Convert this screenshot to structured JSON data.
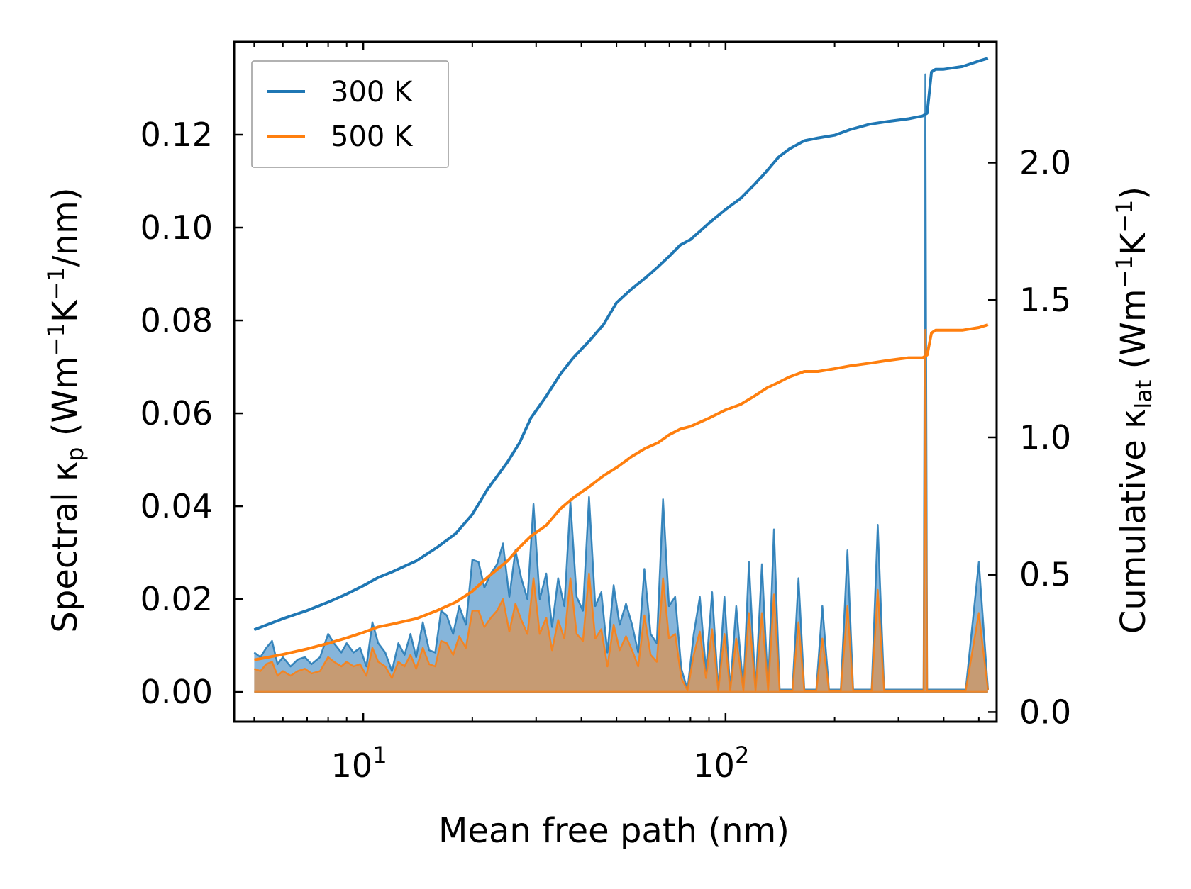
{
  "chart_data": {
    "type": "line",
    "x_scale": "log",
    "xlabel": "Mean free path (nm)",
    "ylabel_left": "Spectral κₚ (Wm⁻¹K⁻¹/nm)",
    "ylabel_right": "Cumulative κₗₐₜ (Wm⁻¹K⁻¹)",
    "ylabel_left_parts": {
      "pre": "Spectral κ",
      "sub": "p",
      "post": " (Wm",
      "sup1": "−1",
      "mid": "K",
      "sup2": "−1",
      "tail": "/nm)"
    },
    "ylabel_right_parts": {
      "pre": "Cumulative κ",
      "sub": "lat",
      "post": " (Wm",
      "sup1": "−1",
      "mid": "K",
      "sup2": "−1",
      "tail": ")"
    },
    "xlim": [
      4.4,
      560
    ],
    "ylim_left": [
      -0.0064,
      0.14
    ],
    "ylim_right": [
      -0.035,
      2.44
    ],
    "x_major_ticks": [
      10,
      100
    ],
    "x_tick_labels": [
      {
        "base": "10",
        "exp": "1"
      },
      {
        "base": "10",
        "exp": "2"
      }
    ],
    "y_left_ticks": [
      0.0,
      0.02,
      0.04,
      0.06,
      0.08,
      0.1,
      0.12
    ],
    "y_left_tick_labels": [
      "0.00",
      "0.02",
      "0.04",
      "0.06",
      "0.08",
      "0.10",
      "0.12"
    ],
    "y_right_ticks": [
      0.0,
      0.5,
      1.0,
      1.5,
      2.0
    ],
    "y_right_tick_labels": [
      "0.0",
      "0.5",
      "1.0",
      "1.5",
      "2.0"
    ],
    "legend": {
      "position": "top-left",
      "entries": [
        "300 K",
        "500 K"
      ]
    },
    "colors": {
      "300 K": "#1f77b4",
      "500 K": "#ff7f0e",
      "fill_300": "#7fb1d8",
      "fill_500": "#c99a6e"
    },
    "series": [
      {
        "name": "300 K",
        "axis": "right",
        "kind": "cumulative",
        "x": [
          5,
          6,
          7,
          8,
          9,
          10,
          11,
          12,
          14,
          16,
          18,
          20,
          22,
          25,
          27,
          29,
          32,
          35,
          38,
          42,
          46,
          50,
          55,
          60,
          65,
          70,
          75,
          80,
          90,
          100,
          110,
          120,
          130,
          140,
          150,
          165,
          180,
          200,
          220,
          250,
          280,
          320,
          350,
          360,
          370,
          380,
          400,
          450,
          500,
          530
        ],
        "y": [
          0.3,
          0.34,
          0.37,
          0.4,
          0.43,
          0.46,
          0.49,
          0.51,
          0.55,
          0.6,
          0.65,
          0.72,
          0.81,
          0.91,
          0.98,
          1.07,
          1.15,
          1.23,
          1.29,
          1.35,
          1.41,
          1.49,
          1.54,
          1.58,
          1.62,
          1.66,
          1.7,
          1.72,
          1.78,
          1.83,
          1.87,
          1.92,
          1.97,
          2.02,
          2.05,
          2.08,
          2.09,
          2.1,
          2.12,
          2.14,
          2.15,
          2.16,
          2.17,
          2.18,
          2.33,
          2.34,
          2.34,
          2.35,
          2.37,
          2.38
        ]
      },
      {
        "name": "500 K",
        "axis": "right",
        "kind": "cumulative",
        "x": [
          5,
          6,
          7,
          8,
          9,
          10,
          11,
          12,
          14,
          16,
          18,
          20,
          22,
          25,
          27,
          29,
          32,
          35,
          38,
          42,
          46,
          50,
          55,
          60,
          65,
          70,
          75,
          80,
          90,
          100,
          110,
          120,
          130,
          140,
          150,
          165,
          180,
          200,
          220,
          250,
          280,
          320,
          350,
          360,
          370,
          380,
          400,
          450,
          500,
          530
        ],
        "y": [
          0.19,
          0.21,
          0.23,
          0.25,
          0.27,
          0.29,
          0.31,
          0.32,
          0.34,
          0.37,
          0.4,
          0.44,
          0.49,
          0.55,
          0.6,
          0.64,
          0.68,
          0.74,
          0.78,
          0.82,
          0.86,
          0.89,
          0.93,
          0.96,
          0.98,
          1.01,
          1.03,
          1.04,
          1.07,
          1.1,
          1.12,
          1.15,
          1.18,
          1.2,
          1.22,
          1.24,
          1.24,
          1.25,
          1.26,
          1.27,
          1.28,
          1.29,
          1.29,
          1.3,
          1.38,
          1.39,
          1.39,
          1.39,
          1.4,
          1.41
        ]
      },
      {
        "name": "300 K",
        "axis": "left",
        "kind": "spectral",
        "x": [
          5.0,
          5.2,
          5.4,
          5.6,
          5.8,
          6.0,
          6.3,
          6.6,
          6.9,
          7.2,
          7.6,
          8.0,
          8.3,
          8.7,
          9.0,
          9.4,
          9.8,
          10.2,
          10.6,
          11.0,
          11.5,
          12.0,
          12.5,
          13.0,
          13.5,
          14.0,
          14.6,
          15.2,
          15.8,
          16.4,
          17.0,
          17.7,
          18.4,
          19.2,
          20.0,
          20.8,
          21.6,
          22.5,
          23.4,
          24.3,
          25.3,
          26.3,
          27.3,
          28.4,
          29.5,
          30.7,
          32.0,
          33.2,
          34.5,
          35.9,
          37.3,
          38.8,
          40.4,
          42.0,
          43.7,
          45.4,
          47.2,
          49.1,
          51.0,
          53.1,
          55.2,
          57.4,
          59.7,
          62.1,
          64.6,
          67.2,
          69.8,
          72.6,
          75.5,
          78.5,
          81.7,
          84.9,
          88.3,
          91.8,
          95.5,
          99.3,
          103,
          107,
          112,
          116,
          121,
          126,
          131,
          136,
          141,
          147,
          153,
          159,
          165,
          172,
          178,
          185,
          193,
          200,
          208,
          217,
          225,
          234,
          244,
          253,
          263,
          274,
          285,
          296,
          308,
          320,
          333,
          346,
          352,
          356,
          360,
          370,
          390,
          420,
          460,
          500,
          530
        ],
        "y": [
          0.0085,
          0.0075,
          0.0095,
          0.011,
          0.006,
          0.0075,
          0.0055,
          0.007,
          0.0075,
          0.006,
          0.0075,
          0.0125,
          0.0105,
          0.0085,
          0.0105,
          0.0085,
          0.0095,
          0.0055,
          0.015,
          0.0105,
          0.0085,
          0.0045,
          0.0105,
          0.008,
          0.0125,
          0.0075,
          0.015,
          0.009,
          0.0085,
          0.0175,
          0.0165,
          0.0125,
          0.0185,
          0.0145,
          0.0285,
          0.028,
          0.0225,
          0.0255,
          0.0275,
          0.032,
          0.0205,
          0.0305,
          0.0245,
          0.02,
          0.0405,
          0.02,
          0.0255,
          0.014,
          0.0245,
          0.0185,
          0.041,
          0.0205,
          0.0175,
          0.042,
          0.0185,
          0.0215,
          0.0085,
          0.023,
          0.0145,
          0.019,
          0.0145,
          0.0085,
          0.0265,
          0.0125,
          0.0105,
          0.0415,
          0.0185,
          0.0205,
          0.005,
          0.0005,
          0.0125,
          0.0205,
          0.0045,
          0.0215,
          0.0005,
          0.0205,
          0.0005,
          0.0185,
          0.0005,
          0.028,
          0.0005,
          0.0275,
          0.0005,
          0.035,
          0.0005,
          0.0005,
          0.0005,
          0.0245,
          0.0005,
          0.0005,
          0.0005,
          0.0185,
          0.0005,
          0.0005,
          0.0005,
          0.0305,
          0.0005,
          0.0005,
          0.0005,
          0.0005,
          0.036,
          0.0005,
          0.0005,
          0.0005,
          0.0005,
          0.0005,
          0.0005,
          0.0005,
          0.0005,
          0.133,
          0.0005,
          0.0005,
          0.0005,
          0.0005,
          0.0005,
          0.028,
          0.0005
        ]
      },
      {
        "name": "500 K",
        "axis": "left",
        "kind": "spectral",
        "x": [
          5.0,
          5.2,
          5.4,
          5.6,
          5.8,
          6.0,
          6.3,
          6.6,
          6.9,
          7.2,
          7.6,
          8.0,
          8.3,
          8.7,
          9.0,
          9.4,
          9.8,
          10.2,
          10.6,
          11.0,
          11.5,
          12.0,
          12.5,
          13.0,
          13.5,
          14.0,
          14.6,
          15.2,
          15.8,
          16.4,
          17.0,
          17.7,
          18.4,
          19.2,
          20.0,
          20.8,
          21.6,
          22.5,
          23.4,
          24.3,
          25.3,
          26.3,
          27.3,
          28.4,
          29.5,
          30.7,
          32.0,
          33.2,
          34.5,
          35.9,
          37.3,
          38.8,
          40.4,
          42.0,
          43.7,
          45.4,
          47.2,
          49.1,
          51.0,
          53.1,
          55.2,
          57.4,
          59.7,
          62.1,
          64.6,
          67.2,
          69.8,
          72.6,
          75.5,
          78.5,
          81.7,
          84.9,
          88.3,
          91.8,
          95.5,
          99.3,
          103,
          107,
          112,
          116,
          121,
          126,
          131,
          136,
          141,
          147,
          153,
          159,
          165,
          172,
          178,
          185,
          193,
          200,
          208,
          217,
          225,
          234,
          244,
          253,
          263,
          274,
          285,
          296,
          308,
          320,
          333,
          346,
          352,
          356,
          360,
          370,
          390,
          420,
          460,
          500,
          530
        ],
        "y": [
          0.005,
          0.0045,
          0.006,
          0.0065,
          0.0035,
          0.0045,
          0.0035,
          0.0045,
          0.005,
          0.004,
          0.0045,
          0.0075,
          0.0065,
          0.0055,
          0.0065,
          0.0055,
          0.006,
          0.0035,
          0.0095,
          0.0065,
          0.0055,
          0.003,
          0.0065,
          0.0055,
          0.008,
          0.005,
          0.0095,
          0.006,
          0.0055,
          0.011,
          0.0105,
          0.008,
          0.012,
          0.0095,
          0.0175,
          0.0175,
          0.014,
          0.016,
          0.0175,
          0.02,
          0.013,
          0.019,
          0.0155,
          0.0125,
          0.0245,
          0.0125,
          0.016,
          0.009,
          0.0155,
          0.0115,
          0.0245,
          0.0125,
          0.011,
          0.0255,
          0.0115,
          0.0135,
          0.0055,
          0.0145,
          0.009,
          0.012,
          0.009,
          0.0055,
          0.0165,
          0.008,
          0.0065,
          0.0245,
          0.0115,
          0.0125,
          0.003,
          0.0003,
          0.008,
          0.013,
          0.003,
          0.0135,
          0.0003,
          0.0125,
          0.0003,
          0.0115,
          0.0003,
          0.017,
          0.0003,
          0.017,
          0.0003,
          0.021,
          0.0003,
          0.0003,
          0.0003,
          0.015,
          0.0003,
          0.0003,
          0.0003,
          0.0115,
          0.0003,
          0.0003,
          0.0003,
          0.0185,
          0.0003,
          0.0003,
          0.0003,
          0.0003,
          0.022,
          0.0003,
          0.0003,
          0.0003,
          0.0003,
          0.0003,
          0.0003,
          0.0003,
          0.0003,
          0.078,
          0.0003,
          0.0003,
          0.0003,
          0.0003,
          0.0003,
          0.017,
          0.0003
        ]
      }
    ]
  }
}
